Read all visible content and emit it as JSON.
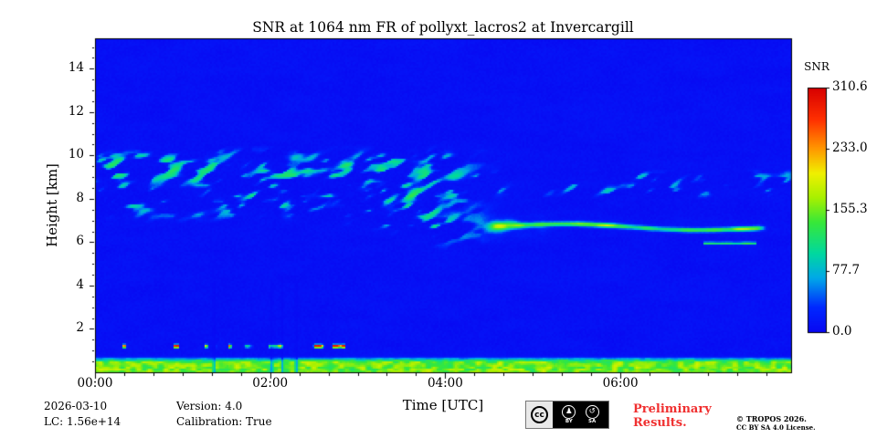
{
  "chart_data": {
    "type": "heatmap",
    "title": "SNR at 1064 nm FR of pollyxt_lacros2 at Invercargill",
    "xlabel": "Time [UTC]",
    "ylabel": "Height [km]",
    "x_range_hours": [
      0,
      7.95
    ],
    "y_range_km": [
      0,
      15.4
    ],
    "xticks": [
      {
        "label": "00:00",
        "hour": 0
      },
      {
        "label": "02:00",
        "hour": 2
      },
      {
        "label": "04:00",
        "hour": 4
      },
      {
        "label": "06:00",
        "hour": 6
      }
    ],
    "yticks_km": [
      2,
      4,
      6,
      8,
      10,
      12,
      14
    ],
    "colorbar": {
      "label": "SNR",
      "min": 0,
      "max": 310.6,
      "tick_values": [
        310.6,
        233.0,
        155.3,
        77.7,
        0.0
      ],
      "tick_labels": [
        "310.6",
        "233.0",
        "155.3",
        "77.7",
        "0.0"
      ],
      "stops": [
        [
          0.0,
          "#0808f2"
        ],
        [
          0.1,
          "#0028ff"
        ],
        [
          0.22,
          "#00a8e8"
        ],
        [
          0.32,
          "#00d8a0"
        ],
        [
          0.45,
          "#38e838"
        ],
        [
          0.55,
          "#a8f000"
        ],
        [
          0.65,
          "#f0f000"
        ],
        [
          0.75,
          "#ff9800"
        ],
        [
          0.87,
          "#ff3000"
        ],
        [
          1.0,
          "#d80000"
        ]
      ]
    },
    "features": {
      "background_snr": 5,
      "cirrus": {
        "t": [
          0,
          4.5
        ],
        "h": [
          6.9,
          10.5
        ],
        "peak_snr": 130,
        "base_km": 7.35,
        "descent_km": 1.4
      },
      "right_wisps": {
        "t": [
          3.9,
          7.95
        ],
        "h": [
          7.95,
          9.45
        ],
        "peak_snr": 90
      },
      "cloud_line": {
        "t": [
          4.4,
          7.7
        ],
        "h_center": 6.8,
        "peak_snr": 185
      },
      "lower_segment": {
        "t": [
          6.95,
          7.55
        ],
        "h_center": 5.95,
        "peak_snr": 150
      },
      "surface_layer": {
        "h_top": 0.55,
        "peak_snr": 150
      },
      "aerosol_spots": {
        "t": [
          0.1,
          2.85
        ],
        "h_center": 1.2,
        "peak_snr": 300
      },
      "attenuation_columns": {
        "hours": [
          1.36,
          2.02,
          2.14,
          2.3
        ],
        "h_max": 4.2
      }
    }
  },
  "footer": {
    "date": "2026-03-10",
    "lc": "LC: 1.56e+14",
    "version": "Version: 4.0",
    "calibration": "Calibration: True",
    "preliminary_line1": "Preliminary",
    "preliminary_line2": "Results.",
    "preliminary_color": "#f03030",
    "copyright": "© TROPOS 2026.",
    "license": "CC BY SA 4.0 License.",
    "badge": {
      "cc_label": "cc",
      "by_icon": "♟",
      "sa_icon": "↺",
      "by_label": "BY",
      "sa_label": "SA"
    }
  }
}
